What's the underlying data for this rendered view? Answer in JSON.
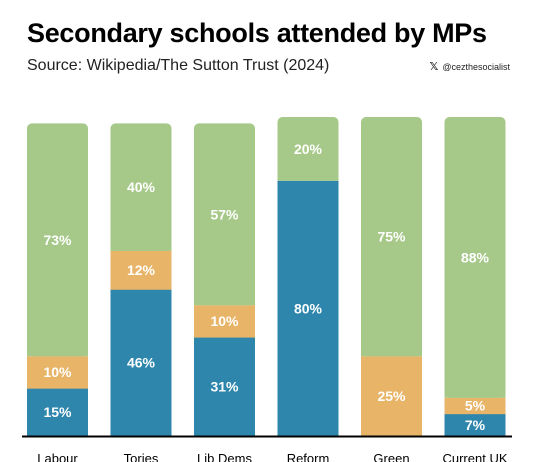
{
  "header": {
    "title": "Secondary schools attended by MPs",
    "subtitle": "Source: Wikipedia/The Sutton Trust (2024)",
    "credit": "@cezthesocialist",
    "credit_icon": "x-logo-icon"
  },
  "colors": {
    "blue": "#2e86ad",
    "orange": "#e8b467",
    "green": "#a6c98a",
    "label": "#ffffff",
    "axis": "#000000"
  },
  "chart_data": {
    "type": "bar",
    "stacked": true,
    "categories": [
      "Labour",
      "Tories",
      "Lib Dems",
      "Reform",
      "Green",
      "Current UK"
    ],
    "series": [
      {
        "values": [
          15,
          46,
          31,
          80,
          0,
          7
        ],
        "labels": [
          "15%",
          "46%",
          "31%",
          "80%",
          "",
          "7%"
        ],
        "color": "#2e86ad"
      },
      {
        "values": [
          10,
          12,
          10,
          0,
          25,
          5
        ],
        "labels": [
          "10%",
          "12%",
          "10%",
          "",
          "25%",
          "5%"
        ],
        "color": "#e8b467"
      },
      {
        "values": [
          73,
          40,
          57,
          20,
          75,
          88
        ],
        "labels": [
          "73%",
          "40%",
          "57%",
          "20%",
          "75%",
          "88%"
        ],
        "color": "#a6c98a"
      }
    ],
    "ylim": [
      0,
      100
    ],
    "grid": false,
    "legend": "none"
  }
}
